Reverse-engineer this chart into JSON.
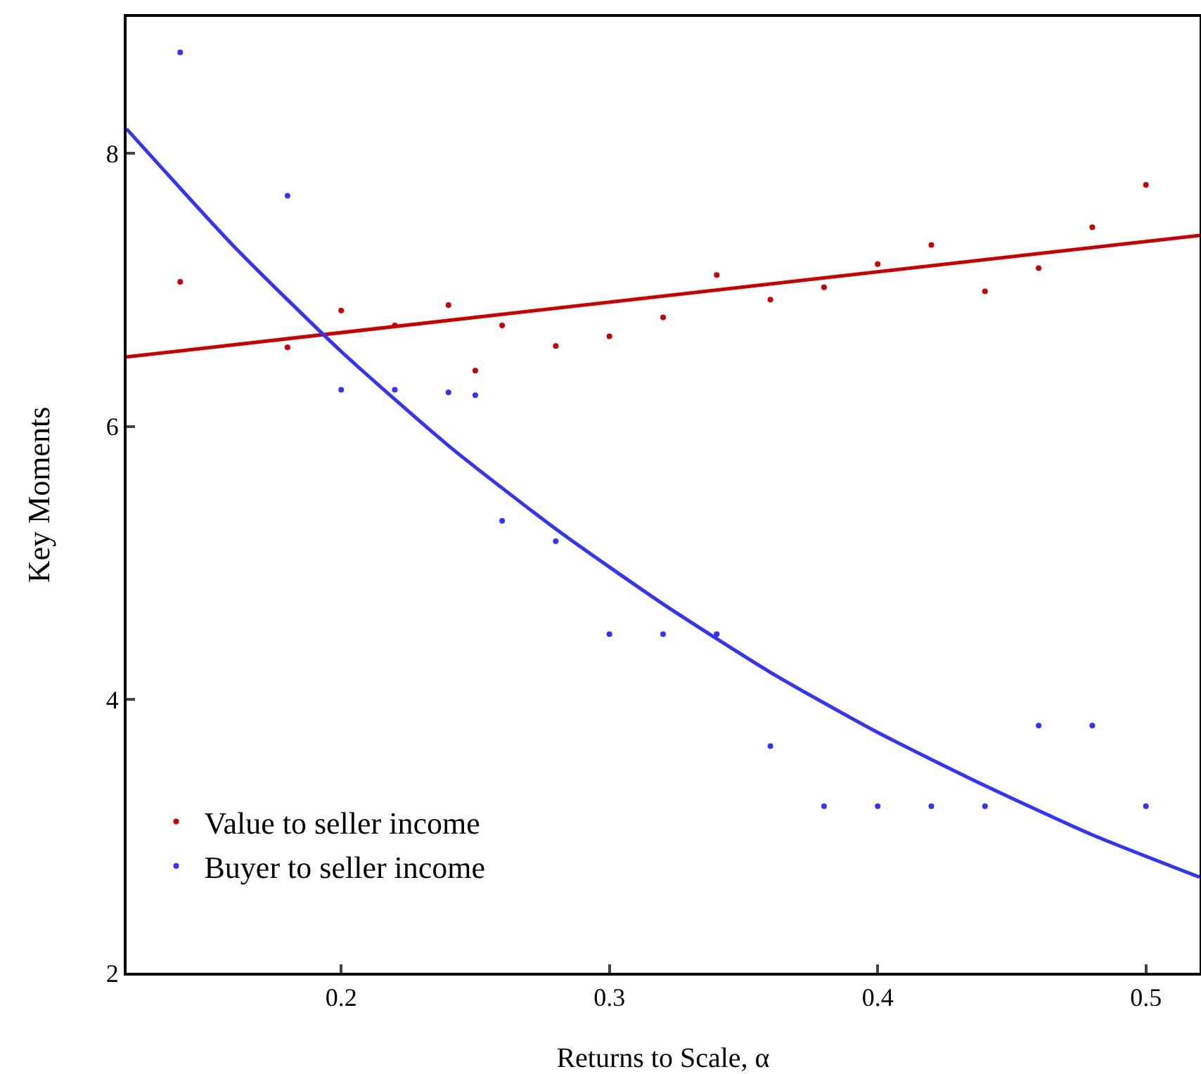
{
  "chart_data": {
    "type": "scatter",
    "xlabel": "Returns to Scale, α",
    "ylabel": "Key Moments",
    "xlim": [
      0.12,
      0.52
    ],
    "ylim": [
      2,
      9
    ],
    "xticks": [
      0.2,
      0.3,
      0.4,
      0.5
    ],
    "yticks": [
      2,
      4,
      6,
      8
    ],
    "grid": false,
    "legend": "bottom left",
    "marker": "circle",
    "series": [
      {
        "name": "Value to seller income",
        "color": "#cc0000",
        "x": [
          0.14,
          0.18,
          0.2,
          0.22,
          0.24,
          0.25,
          0.26,
          0.28,
          0.3,
          0.32,
          0.34,
          0.36,
          0.38,
          0.4,
          0.42,
          0.44,
          0.46,
          0.48,
          0.5
        ],
        "values": [
          7.06,
          6.58,
          6.85,
          6.74,
          6.89,
          6.41,
          6.74,
          6.59,
          6.66,
          6.8,
          7.11,
          6.93,
          7.02,
          7.19,
          7.33,
          6.99,
          7.16,
          7.46,
          7.77
        ]
      },
      {
        "name": "Buyer to seller income",
        "color": "#3333ff",
        "x": [
          0.14,
          0.18,
          0.2,
          0.22,
          0.24,
          0.25,
          0.26,
          0.28,
          0.3,
          0.32,
          0.34,
          0.36,
          0.38,
          0.4,
          0.42,
          0.44,
          0.46,
          0.48,
          0.5
        ],
        "values": [
          8.74,
          7.69,
          6.27,
          6.27,
          6.25,
          6.23,
          5.31,
          5.16,
          4.48,
          4.48,
          4.48,
          3.66,
          3.22,
          3.22,
          3.22,
          3.22,
          3.81,
          3.81,
          3.22
        ]
      },
      {
        "type": "line",
        "marker": "none",
        "color": "#cc0000",
        "x": [
          0.12,
          0.52
        ],
        "values": [
          6.51,
          7.4
        ]
      },
      {
        "type": "line",
        "marker": "none",
        "color": "#3333ff",
        "x": [
          0.12,
          0.16,
          0.2,
          0.24,
          0.28,
          0.32,
          0.36,
          0.4,
          0.44,
          0.48,
          0.52
        ],
        "values": [
          8.18,
          7.32,
          6.55,
          5.86,
          5.25,
          4.7,
          4.2,
          3.76,
          3.37,
          3.01,
          2.7
        ]
      }
    ]
  }
}
